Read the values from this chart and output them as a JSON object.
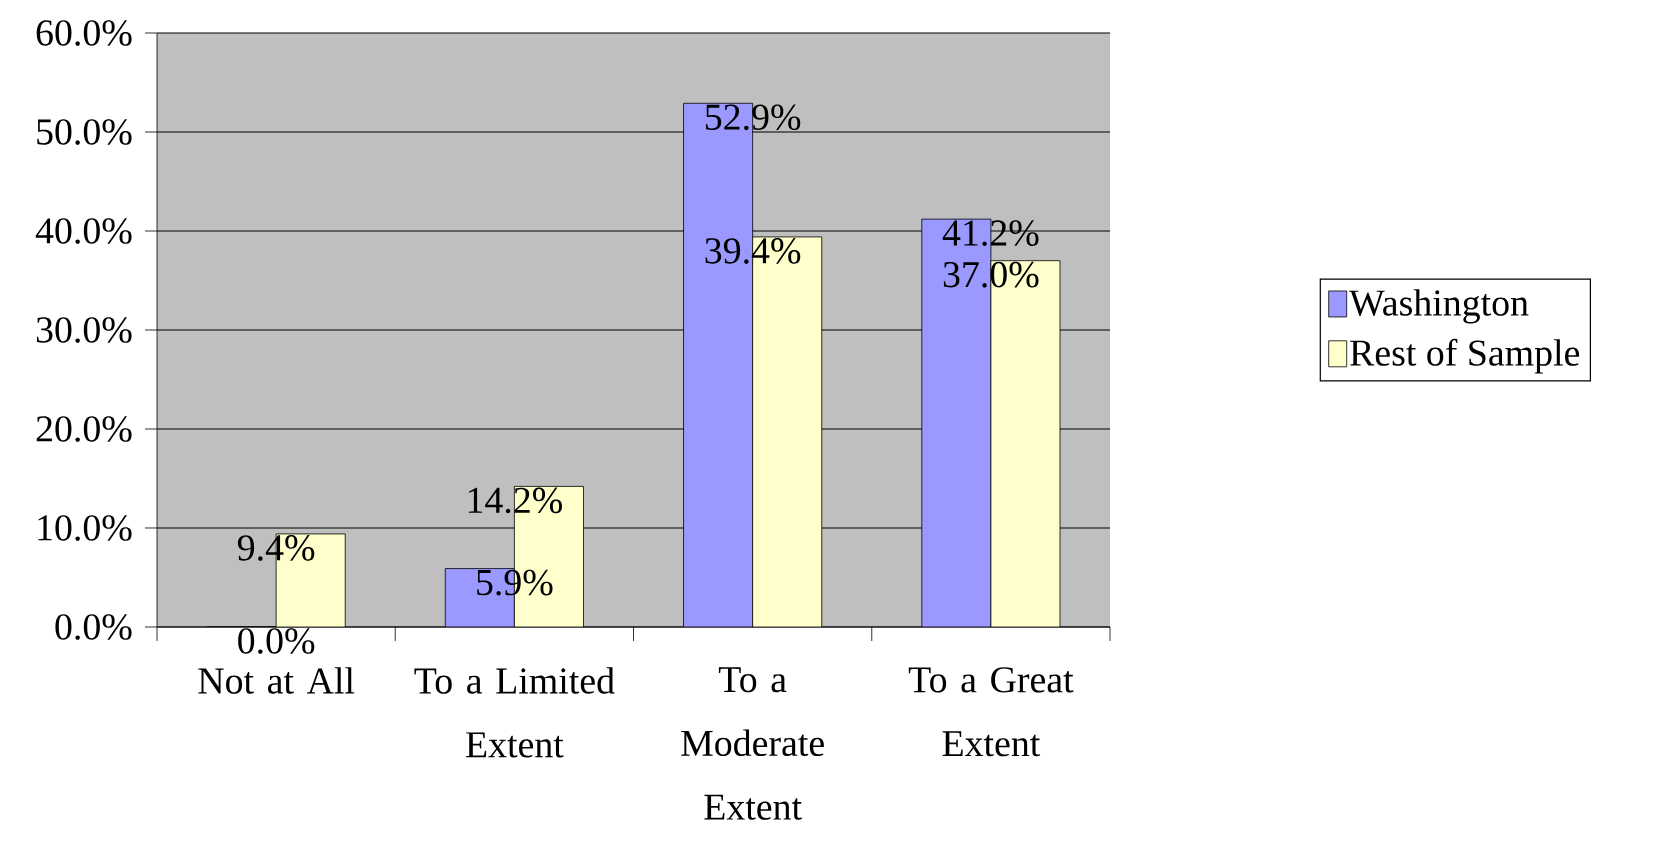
{
  "chart_data": {
    "type": "bar",
    "categories": [
      "Not at All",
      "To a Limited Extent",
      "To a Moderate Extent",
      "To a Great Extent"
    ],
    "series": [
      {
        "name": "Washington",
        "color": "#9999ff",
        "values": [
          0.0,
          5.9,
          52.9,
          41.2
        ],
        "value_labels": [
          "0.0%",
          "5.9%",
          "52.9%",
          "41.2%"
        ]
      },
      {
        "name": "Rest of Sample",
        "color": "#ffffcc",
        "values": [
          9.4,
          14.2,
          39.4,
          37.0
        ],
        "value_labels": [
          "9.4%",
          "14.2%",
          "39.4%",
          "37.0%"
        ]
      }
    ],
    "ylim": [
      0,
      60
    ],
    "yticks": [
      {
        "value": 0,
        "label": "0.0%"
      },
      {
        "value": 10,
        "label": "10.0%"
      },
      {
        "value": 20,
        "label": "20.0%"
      },
      {
        "value": 30,
        "label": "30.0%"
      },
      {
        "value": 40,
        "label": "40.0%"
      },
      {
        "value": 50,
        "label": "50.0%"
      },
      {
        "value": 60,
        "label": "60.0%"
      }
    ],
    "grid": "y",
    "legend": "right"
  }
}
